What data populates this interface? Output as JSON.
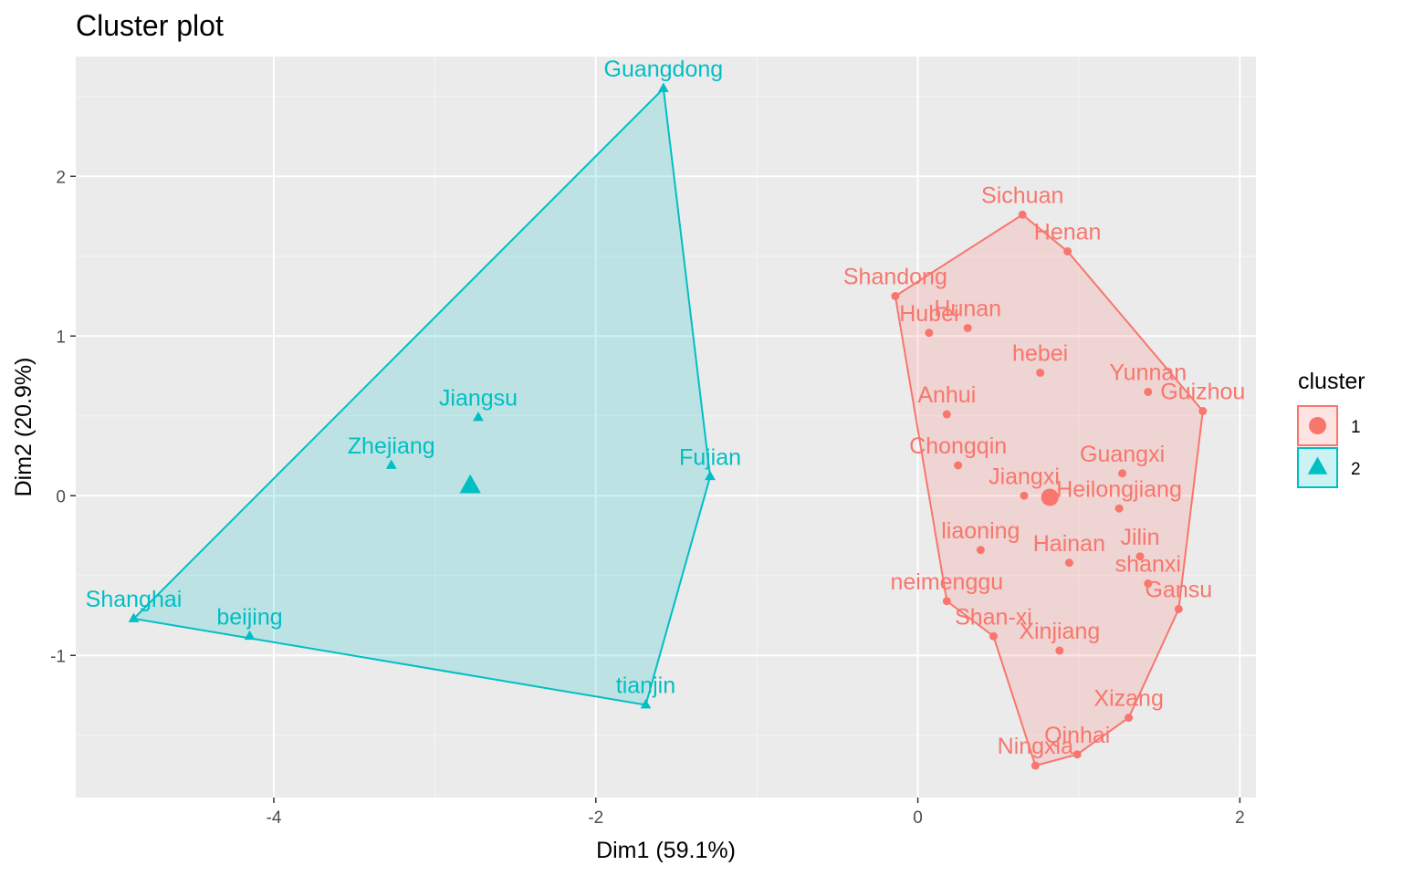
{
  "chart_data": {
    "type": "scatter",
    "title": "Cluster plot",
    "xlabel": "Dim1 (59.1%)",
    "ylabel": "Dim2 (20.9%)",
    "xlim": [
      -5.23,
      2.1
    ],
    "ylim": [
      -1.89,
      2.75
    ],
    "xticks": [
      -4,
      -2,
      0,
      2
    ],
    "yticks": [
      -1,
      0,
      1,
      2
    ],
    "grid": true,
    "legend": {
      "title": "cluster",
      "position": "right",
      "entries": [
        {
          "label": "1",
          "color": "#F8766D",
          "shape": "circle"
        },
        {
          "label": "2",
          "color": "#00BFC4",
          "shape": "triangle"
        }
      ]
    },
    "clusters": [
      {
        "name": "1",
        "color": "#F8766D",
        "shape": "circle",
        "centroid": {
          "x": 0.82,
          "y": -0.01
        },
        "hull": [
          "Sichuan",
          "Henan",
          "Guizhou",
          "Gansu",
          "Xizang",
          "Qinhai",
          "Ningxia",
          "Shan-xi",
          "neimenggu",
          "Shandong"
        ],
        "points": [
          {
            "label": "Sichuan",
            "x": 0.65,
            "y": 1.76
          },
          {
            "label": "Henan",
            "x": 0.93,
            "y": 1.53
          },
          {
            "label": "Shandong",
            "x": -0.14,
            "y": 1.25
          },
          {
            "label": "Hunan",
            "x": 0.31,
            "y": 1.05
          },
          {
            "label": "Hubei",
            "x": 0.07,
            "y": 1.02
          },
          {
            "label": "hebei",
            "x": 0.76,
            "y": 0.77
          },
          {
            "label": "Yunnan",
            "x": 1.43,
            "y": 0.65
          },
          {
            "label": "Guizhou",
            "x": 1.77,
            "y": 0.53
          },
          {
            "label": "Anhui",
            "x": 0.18,
            "y": 0.51
          },
          {
            "label": "Chongqin",
            "x": 0.25,
            "y": 0.19
          },
          {
            "label": "Guangxi",
            "x": 1.27,
            "y": 0.14
          },
          {
            "label": "Jiangxi",
            "x": 0.66,
            "y": 0.0
          },
          {
            "label": "Heilongjiang",
            "x": 1.25,
            "y": -0.08
          },
          {
            "label": "liaoning",
            "x": 0.39,
            "y": -0.34
          },
          {
            "label": "Jilin",
            "x": 1.38,
            "y": -0.38
          },
          {
            "label": "Hainan",
            "x": 0.94,
            "y": -0.42
          },
          {
            "label": "shanxi",
            "x": 1.43,
            "y": -0.55
          },
          {
            "label": "neimenggu",
            "x": 0.18,
            "y": -0.66
          },
          {
            "label": "Gansu",
            "x": 1.62,
            "y": -0.71
          },
          {
            "label": "Shan-xi",
            "x": 0.47,
            "y": -0.88
          },
          {
            "label": "Xinjiang",
            "x": 0.88,
            "y": -0.97
          },
          {
            "label": "Xizang",
            "x": 1.31,
            "y": -1.39
          },
          {
            "label": "Qinhai",
            "x": 0.99,
            "y": -1.62
          },
          {
            "label": "Ningxia",
            "x": 0.73,
            "y": -1.69
          }
        ]
      },
      {
        "name": "2",
        "color": "#00BFC4",
        "shape": "triangle",
        "centroid": {
          "x": -2.78,
          "y": 0.06
        },
        "hull": [
          "Guangdong",
          "Fujian",
          "tianjin",
          "Shanghai"
        ],
        "points": [
          {
            "label": "Guangdong",
            "x": -1.58,
            "y": 2.55
          },
          {
            "label": "Jiangsu",
            "x": -2.73,
            "y": 0.49
          },
          {
            "label": "Zhejiang",
            "x": -3.27,
            "y": 0.19
          },
          {
            "label": "Fujian",
            "x": -1.29,
            "y": 0.12
          },
          {
            "label": "Shanghai",
            "x": -4.87,
            "y": -0.77
          },
          {
            "label": "beijing",
            "x": -4.15,
            "y": -0.88
          },
          {
            "label": "tianjin",
            "x": -1.69,
            "y": -1.31
          }
        ]
      }
    ]
  }
}
